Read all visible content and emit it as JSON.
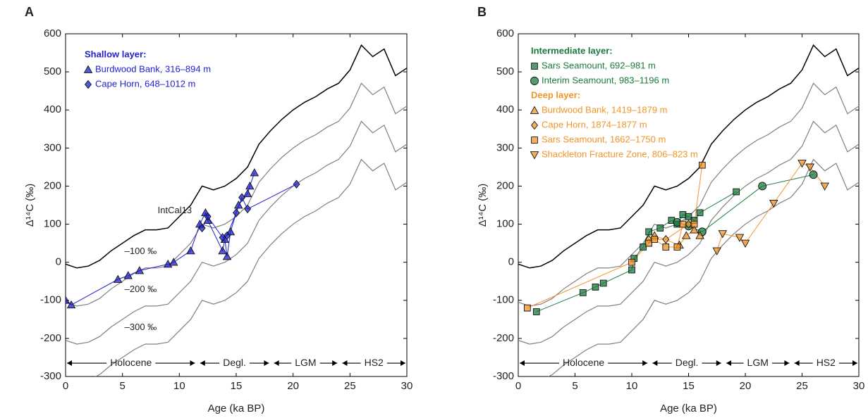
{
  "chart_data": [
    {
      "type": "line",
      "panel": "A",
      "xlabel": "Age (ka BP)",
      "ylabel": "Δ¹⁴C (‰)",
      "xlim": [
        0,
        30
      ],
      "xticks": [
        0,
        5,
        10,
        15,
        20,
        25,
        30
      ],
      "ylim": [
        -300,
        600
      ],
      "yticks": [
        -300,
        -200,
        -100,
        0,
        100,
        200,
        300,
        400,
        500,
        600
      ],
      "x": [
        0,
        1,
        2,
        3,
        4,
        5,
        6,
        7,
        8,
        9,
        10,
        11,
        12,
        13,
        14,
        15,
        16,
        17,
        18,
        19,
        20,
        21,
        22,
        23,
        24,
        25,
        26,
        27,
        28,
        29,
        30
      ],
      "curves": [
        {
          "name": "IntCal13",
          "color": "#000000",
          "values": [
            -5,
            -15,
            -10,
            5,
            30,
            50,
            70,
            85,
            85,
            90,
            120,
            150,
            200,
            190,
            200,
            220,
            250,
            310,
            345,
            375,
            400,
            420,
            435,
            455,
            470,
            505,
            570,
            540,
            560,
            490,
            510
          ]
        },
        {
          "name": "–100 ‰",
          "color": "#808080",
          "values": [
            -105,
            -115,
            -110,
            -95,
            -70,
            -50,
            -30,
            -15,
            -15,
            -10,
            20,
            50,
            100,
            90,
            100,
            120,
            150,
            210,
            245,
            275,
            300,
            320,
            335,
            355,
            370,
            405,
            470,
            440,
            460,
            390,
            410
          ]
        },
        {
          "name": "–200 ‰",
          "color": "#808080",
          "values": [
            -205,
            -215,
            -210,
            -195,
            -170,
            -150,
            -130,
            -115,
            -115,
            -110,
            -80,
            -50,
            0,
            -10,
            0,
            20,
            50,
            110,
            145,
            175,
            200,
            220,
            235,
            255,
            270,
            305,
            370,
            340,
            360,
            290,
            310
          ]
        },
        {
          "name": "–300 ‰",
          "color": "#808080",
          "values": [
            -305,
            -315,
            -310,
            -295,
            -270,
            -250,
            -230,
            -215,
            -215,
            -210,
            -180,
            -150,
            -100,
            -110,
            -100,
            -80,
            -50,
            10,
            45,
            75,
            100,
            120,
            135,
            155,
            170,
            205,
            270,
            240,
            260,
            190,
            210
          ]
        }
      ],
      "groups": [
        {
          "title": "Shallow layer:",
          "color": "#1f1fd0",
          "series": [
            {
              "name": "Burdwood Bank, 316–894 m",
              "marker": "triangle",
              "color": "#1f1fd0",
              "x": [
                0,
                0.5,
                4.6,
                5.5,
                6.5,
                9,
                9.5,
                11,
                11.8,
                12.3,
                12.5,
                13.8,
                14,
                14.2,
                14.5,
                15.2,
                16,
                16.2,
                16.6
              ],
              "values": [
                -100,
                -112,
                -45,
                -35,
                -22,
                -5,
                0,
                30,
                100,
                130,
                110,
                30,
                60,
                15,
                80,
                150,
                180,
                200,
                235
              ]
            },
            {
              "name": "Cape Horn, 648–1012 m",
              "marker": "diamond",
              "color": "#1f1fd0",
              "x": [
                12,
                12.5,
                13.8,
                14.2,
                15,
                15.5,
                16,
                20.3
              ],
              "values": [
                90,
                120,
                65,
                70,
                130,
                170,
                140,
                205
              ]
            }
          ]
        }
      ],
      "periods": [
        {
          "label": "Holocene",
          "start": 0,
          "end": 11.5
        },
        {
          "label": "Degl.",
          "start": 11.7,
          "end": 18
        },
        {
          "label": "LGM",
          "start": 18.2,
          "end": 24
        },
        {
          "label": "HS2",
          "start": 24.2,
          "end": 30
        }
      ]
    },
    {
      "type": "line",
      "panel": "B",
      "xlabel": "Age (ka BP)",
      "ylabel": "Δ¹⁴C (‰)",
      "xlim": [
        0,
        30
      ],
      "xticks": [
        0,
        5,
        10,
        15,
        20,
        25,
        30
      ],
      "ylim": [
        -300,
        600
      ],
      "yticks": [
        -300,
        -200,
        -100,
        0,
        100,
        200,
        300,
        400,
        500,
        600
      ],
      "x": [
        0,
        1,
        2,
        3,
        4,
        5,
        6,
        7,
        8,
        9,
        10,
        11,
        12,
        13,
        14,
        15,
        16,
        17,
        18,
        19,
        20,
        21,
        22,
        23,
        24,
        25,
        26,
        27,
        28,
        29,
        30
      ],
      "curves": [
        {
          "color": "#000000",
          "values": [
            -5,
            -15,
            -10,
            5,
            30,
            50,
            70,
            85,
            85,
            90,
            120,
            150,
            200,
            190,
            200,
            220,
            250,
            310,
            345,
            375,
            400,
            420,
            435,
            455,
            470,
            505,
            570,
            540,
            560,
            490,
            510
          ]
        },
        {
          "color": "#808080",
          "values": [
            -105,
            -115,
            -110,
            -95,
            -70,
            -50,
            -30,
            -15,
            -15,
            -10,
            20,
            50,
            100,
            90,
            100,
            120,
            150,
            210,
            245,
            275,
            300,
            320,
            335,
            355,
            370,
            405,
            470,
            440,
            460,
            390,
            410
          ]
        },
        {
          "color": "#808080",
          "values": [
            -205,
            -215,
            -210,
            -195,
            -170,
            -150,
            -130,
            -115,
            -115,
            -110,
            -80,
            -50,
            0,
            -10,
            0,
            20,
            50,
            110,
            145,
            175,
            200,
            220,
            235,
            255,
            270,
            305,
            370,
            340,
            360,
            290,
            310
          ]
        },
        {
          "color": "#808080",
          "values": [
            -305,
            -315,
            -310,
            -295,
            -270,
            -250,
            -230,
            -215,
            -215,
            -210,
            -180,
            -150,
            -100,
            -110,
            -100,
            -80,
            -50,
            10,
            45,
            75,
            100,
            120,
            135,
            155,
            170,
            205,
            270,
            240,
            260,
            190,
            210
          ]
        }
      ],
      "groups": [
        {
          "title": "Intermediate layer:",
          "color": "#1b7a3e",
          "series": [
            {
              "name": "Sars Seamount, 692–981 m",
              "marker": "square",
              "color": "#1b7a3e",
              "x": [
                1.6,
                5.7,
                6.8,
                7.5,
                10,
                10.2,
                11,
                11.5,
                12.5,
                13.5,
                14,
                14.5,
                15,
                15.5,
                16,
                19.2
              ],
              "values": [
                -130,
                -80,
                -65,
                -55,
                -20,
                10,
                40,
                80,
                90,
                110,
                100,
                125,
                120,
                110,
                130,
                185
              ]
            },
            {
              "name": "Interim Seamount, 983–1196 m",
              "marker": "circle",
              "color": "#1b7a3e",
              "x": [
                14,
                15,
                16.2,
                21.5,
                26
              ],
              "values": [
                105,
                95,
                80,
                200,
                230
              ]
            }
          ]
        },
        {
          "title": "Deep layer:",
          "color": "#f0952a",
          "series": [
            {
              "name": "Burdwood Bank, 1419–1879 m",
              "marker": "triangle",
              "color": "#f0952a",
              "x": [
                12,
                14.2,
                14.8,
                15.5,
                16
              ],
              "values": [
                70,
                45,
                70,
                85,
                70
              ]
            },
            {
              "name": "Cape Horn, 1874–1877 m",
              "marker": "diamond",
              "color": "#f0952a",
              "x": [
                11.5,
                13,
                15
              ],
              "values": [
                60,
                60,
                100
              ]
            },
            {
              "name": "Sars Seamount, 1662–1750 m",
              "marker": "square",
              "color": "#f0952a",
              "x": [
                0.8,
                10,
                11.5,
                12,
                13,
                14,
                14.5,
                15.5,
                16.2
              ],
              "values": [
                -120,
                0,
                50,
                60,
                40,
                40,
                100,
                100,
                255
              ]
            },
            {
              "name": "Shackleton Fracture Zone, 806–823 m",
              "marker": "triangle-down",
              "color": "#f0952a",
              "x": [
                17.5,
                18,
                19.5,
                20,
                22.5,
                25,
                25.7,
                27
              ],
              "values": [
                30,
                75,
                65,
                50,
                155,
                260,
                250,
                200
              ]
            }
          ]
        }
      ],
      "periods": [
        {
          "label": "Holocene",
          "start": 0,
          "end": 11.5
        },
        {
          "label": "Degl.",
          "start": 11.7,
          "end": 18
        },
        {
          "label": "LGM",
          "start": 18.2,
          "end": 24
        },
        {
          "label": "HS2",
          "start": 24.2,
          "end": 30
        }
      ]
    }
  ]
}
